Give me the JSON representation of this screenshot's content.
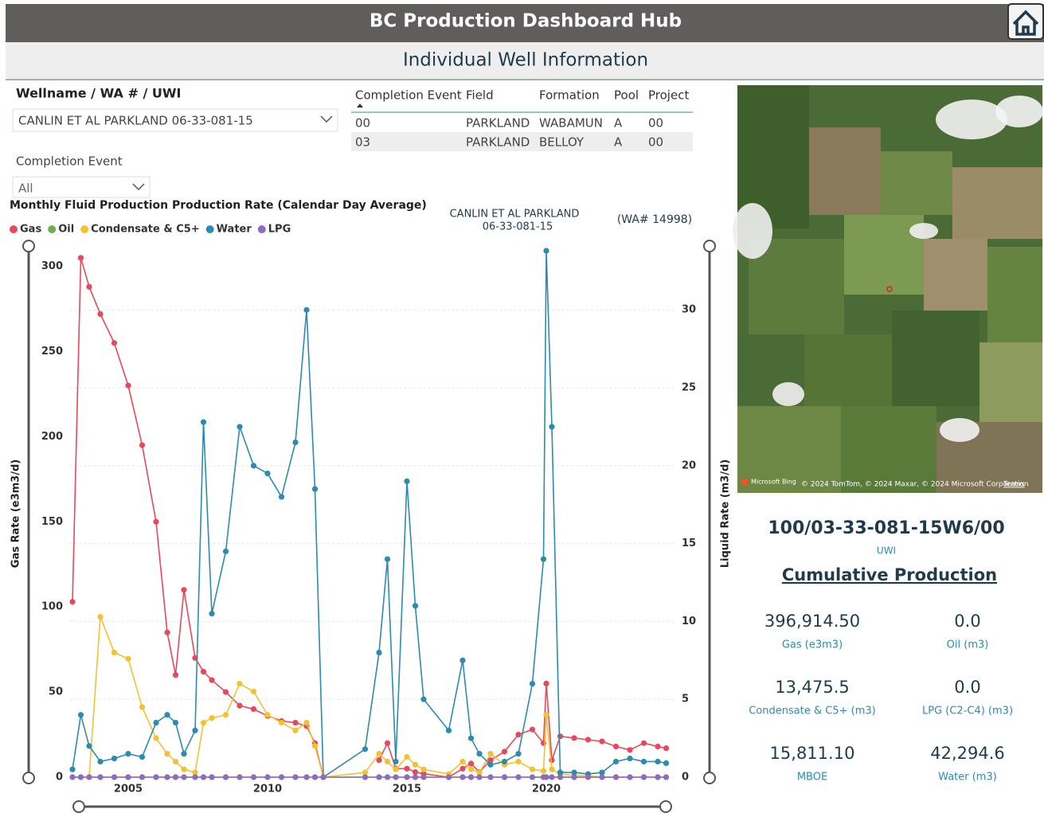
{
  "header": {
    "title": "BC Production Dashboard Hub",
    "subtitle": "Individual Well Information"
  },
  "filters": {
    "well_label": "Wellname / WA # / UWI",
    "well_value": "CANLIN ET AL PARKLAND 06-33-081-15",
    "event_label": "Completion Event",
    "event_value": "All"
  },
  "table": {
    "columns": [
      "Completion Event",
      "Field",
      "Formation",
      "Pool",
      "Project"
    ],
    "rows": [
      [
        "00",
        "PARKLAND",
        "WABAMUN",
        "A",
        "00"
      ],
      [
        "03",
        "PARKLAND",
        "BELLOY",
        "A",
        "00"
      ]
    ]
  },
  "map": {
    "brand": "Microsoft Bing",
    "credits": "© 2024 TomTom, © 2024 Maxar, © 2024 Microsoft Corporation",
    "terms": "Terms"
  },
  "well": {
    "uwi": "100/03-33-081-15W6/00",
    "uwi_label": "UWI",
    "section_title": "Cumulative Production"
  },
  "stats": [
    {
      "value": "396,914.50",
      "label": "Gas (e3m3)"
    },
    {
      "value": "0.0",
      "label": "Oil (m3)"
    },
    {
      "value": "13,475.5",
      "label": "Condensate & C5+ (m3)"
    },
    {
      "value": "0.0",
      "label": "LPG (C2-C4) (m3)"
    },
    {
      "value": "15,811.10",
      "label": "MBOE"
    },
    {
      "value": "42,294.6",
      "label": "Water (m3)"
    }
  ],
  "chart_data": {
    "type": "line",
    "title": "Monthly Fluid Production Production Rate (Calendar Day Average)",
    "annotations": [
      "CANLIN ET AL  PARKLAND",
      "06-33-081-15",
      "(WA# 14998)"
    ],
    "ylabel": "Gas Rate (e3m3/d)",
    "y2label": "Liquid Rate (m3/d)",
    "xlim": [
      2002.9,
      2024.6
    ],
    "xticks": [
      2005,
      2010,
      2015,
      2020
    ],
    "ylim": [
      0,
      311
    ],
    "yticks": [
      0,
      50,
      100,
      150,
      200,
      250,
      300
    ],
    "y2lim": [
      0,
      34
    ],
    "y2ticks": [
      0,
      5,
      10,
      15,
      20,
      25,
      30
    ],
    "grid": true,
    "legend": "top-left",
    "x": [
      2003.0,
      2003.3,
      2003.6,
      2004.0,
      2004.5,
      2005.0,
      2005.5,
      2006.0,
      2006.4,
      2006.7,
      2007.0,
      2007.4,
      2007.7,
      2008.0,
      2008.5,
      2009.0,
      2009.5,
      2010.0,
      2010.5,
      2011.0,
      2011.4,
      2011.7,
      2012.0,
      2013.5,
      2014.0,
      2014.3,
      2014.6,
      2015.0,
      2015.3,
      2015.6,
      2016.5,
      2017.0,
      2017.3,
      2017.6,
      2018.0,
      2018.5,
      2019.0,
      2019.5,
      2019.9,
      2020.0,
      2020.2,
      2020.5,
      2021.0,
      2021.5,
      2022.0,
      2022.5,
      2023.0,
      2023.5,
      2024.0,
      2024.3
    ],
    "series": [
      {
        "name": "Gas",
        "color": "#e8485a",
        "axis": "y",
        "values": [
          103,
          305,
          288,
          272,
          255,
          230,
          195,
          150,
          85,
          60,
          110,
          70,
          62,
          57,
          50,
          42,
          40,
          36,
          33,
          32,
          30,
          20,
          0,
          null,
          10,
          20,
          5,
          5,
          3,
          2,
          0,
          5,
          8,
          3,
          10,
          15,
          25,
          28,
          20,
          55,
          10,
          24,
          23,
          22,
          21,
          18,
          16,
          20,
          18,
          17
        ]
      },
      {
        "name": "Oil",
        "color": "#6ab04c",
        "axis": "y2",
        "values": [
          0,
          0,
          0,
          0,
          0,
          0,
          0,
          0,
          0,
          0,
          0,
          0,
          0,
          0,
          0,
          0,
          0,
          0,
          0,
          0,
          0,
          0,
          0,
          0,
          0,
          0,
          0,
          0,
          0,
          0,
          0,
          0,
          0,
          0,
          0,
          0,
          0,
          0,
          0,
          0,
          0,
          0,
          0,
          0,
          0,
          0,
          0,
          0,
          0,
          0
        ]
      },
      {
        "name": "Condensate & C5+",
        "color": "#f2c230",
        "axis": "y2",
        "values": [
          null,
          null,
          0,
          10.3,
          8.0,
          7.6,
          4.5,
          2.5,
          1.5,
          1.0,
          0.5,
          0.3,
          3.5,
          3.8,
          4.0,
          6.0,
          5.5,
          4.0,
          3.5,
          3.0,
          3.5,
          2.0,
          0,
          0.3,
          1.5,
          1.0,
          0.5,
          1.3,
          0.8,
          0.5,
          0.2,
          1.0,
          0.5,
          0.3,
          1.5,
          0.8,
          1.0,
          0.5,
          0.4,
          4.0,
          0.5,
          0.2,
          0.1,
          0.1,
          0,
          0,
          0,
          0,
          0,
          0
        ]
      },
      {
        "name": "Water",
        "color": "#2b8bb0",
        "axis": "y2",
        "values": [
          0.5,
          4.0,
          2.0,
          1.0,
          1.2,
          1.5,
          1.3,
          3.5,
          4.0,
          3.5,
          1.5,
          3.0,
          22.8,
          10.5,
          14.5,
          22.5,
          20.0,
          19.5,
          18.0,
          21.5,
          30.0,
          18.5,
          0,
          1.8,
          8.0,
          14.0,
          1.0,
          19.0,
          11.0,
          5.0,
          3.0,
          7.5,
          2.5,
          1.5,
          0.8,
          1.0,
          1.5,
          6.0,
          14.0,
          33.8,
          22.5,
          0.3,
          0.3,
          0.2,
          0.3,
          1.0,
          1.2,
          1.0,
          1.0,
          0.9
        ]
      },
      {
        "name": "LPG",
        "color": "#8e6bbf",
        "axis": "y2",
        "values": [
          0,
          0,
          0,
          0,
          0,
          0,
          0,
          0,
          0,
          0,
          0,
          0,
          0,
          0,
          0,
          0,
          0,
          0,
          0,
          0,
          0,
          0,
          0,
          0,
          0,
          0,
          0,
          0,
          0,
          0,
          0,
          0,
          0,
          0,
          0,
          0,
          0,
          0,
          0,
          0,
          0,
          0,
          0,
          0,
          0,
          0,
          0,
          0,
          0,
          0
        ]
      }
    ]
  }
}
